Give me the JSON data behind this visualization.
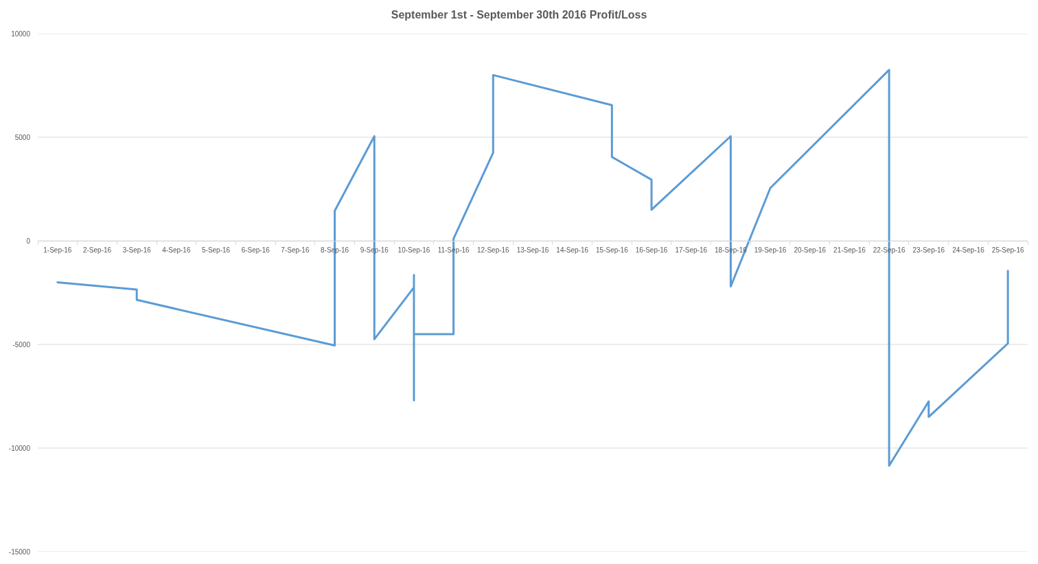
{
  "chart_data": {
    "type": "line",
    "title": "September 1st - September 30th 2016 Profit/Loss",
    "x": [
      "2016-09-01",
      "2016-09-03",
      "2016-09-03",
      "2016-09-08",
      "2016-09-08",
      "2016-09-09",
      "2016-09-09",
      "2016-09-10",
      "2016-09-10",
      "2016-09-10",
      "2016-09-10",
      "2016-09-11",
      "2016-09-11",
      "2016-09-12",
      "2016-09-12",
      "2016-09-15",
      "2016-09-15",
      "2016-09-16",
      "2016-09-16",
      "2016-09-18",
      "2016-09-18",
      "2016-09-19",
      "2016-09-22",
      "2016-09-22",
      "2016-09-23",
      "2016-09-23",
      "2016-09-25",
      "2016-09-25"
    ],
    "values": [
      -2000,
      -2350,
      -2850,
      -5050,
      1450,
      5050,
      -4750,
      -2250,
      -1650,
      -7700,
      -4500,
      -4500,
      100,
      4250,
      8000,
      6550,
      4050,
      2950,
      1500,
      5050,
      -2200,
      2550,
      8250,
      -10850,
      -7750,
      -8500,
      -4950,
      -1450
    ],
    "color": "#5b9bd5",
    "xlim": [
      "2016-08-31T12:00",
      "2016-09-25T12:00"
    ],
    "xticks": [
      {
        "value": "2016-09-01",
        "label": "1-Sep-16"
      },
      {
        "value": "2016-09-02",
        "label": "2-Sep-16"
      },
      {
        "value": "2016-09-03",
        "label": "3-Sep-16"
      },
      {
        "value": "2016-09-04",
        "label": "4-Sep-16"
      },
      {
        "value": "2016-09-05",
        "label": "5-Sep-16"
      },
      {
        "value": "2016-09-06",
        "label": "6-Sep-16"
      },
      {
        "value": "2016-09-07",
        "label": "7-Sep-16"
      },
      {
        "value": "2016-09-08",
        "label": "8-Sep-16"
      },
      {
        "value": "2016-09-09",
        "label": "9-Sep-16"
      },
      {
        "value": "2016-09-10",
        "label": "10-Sep-16"
      },
      {
        "value": "2016-09-11",
        "label": "11-Sep-16"
      },
      {
        "value": "2016-09-12",
        "label": "12-Sep-16"
      },
      {
        "value": "2016-09-13",
        "label": "13-Sep-16"
      },
      {
        "value": "2016-09-14",
        "label": "14-Sep-16"
      },
      {
        "value": "2016-09-15",
        "label": "15-Sep-16"
      },
      {
        "value": "2016-09-16",
        "label": "16-Sep-16"
      },
      {
        "value": "2016-09-17",
        "label": "17-Sep-16"
      },
      {
        "value": "2016-09-18",
        "label": "18-Sep-16"
      },
      {
        "value": "2016-09-19",
        "label": "19-Sep-16"
      },
      {
        "value": "2016-09-20",
        "label": "20-Sep-16"
      },
      {
        "value": "2016-09-21",
        "label": "21-Sep-16"
      },
      {
        "value": "2016-09-22",
        "label": "22-Sep-16"
      },
      {
        "value": "2016-09-23",
        "label": "23-Sep-16"
      },
      {
        "value": "2016-09-24",
        "label": "24-Sep-16"
      },
      {
        "value": "2016-09-25",
        "label": "25-Sep-16"
      }
    ],
    "ylim": [
      -15000,
      10000
    ],
    "yticks": [
      -15000,
      -10000,
      -5000,
      0,
      5000,
      10000
    ],
    "grid": "y",
    "marker": "none",
    "line_style": "solid"
  }
}
